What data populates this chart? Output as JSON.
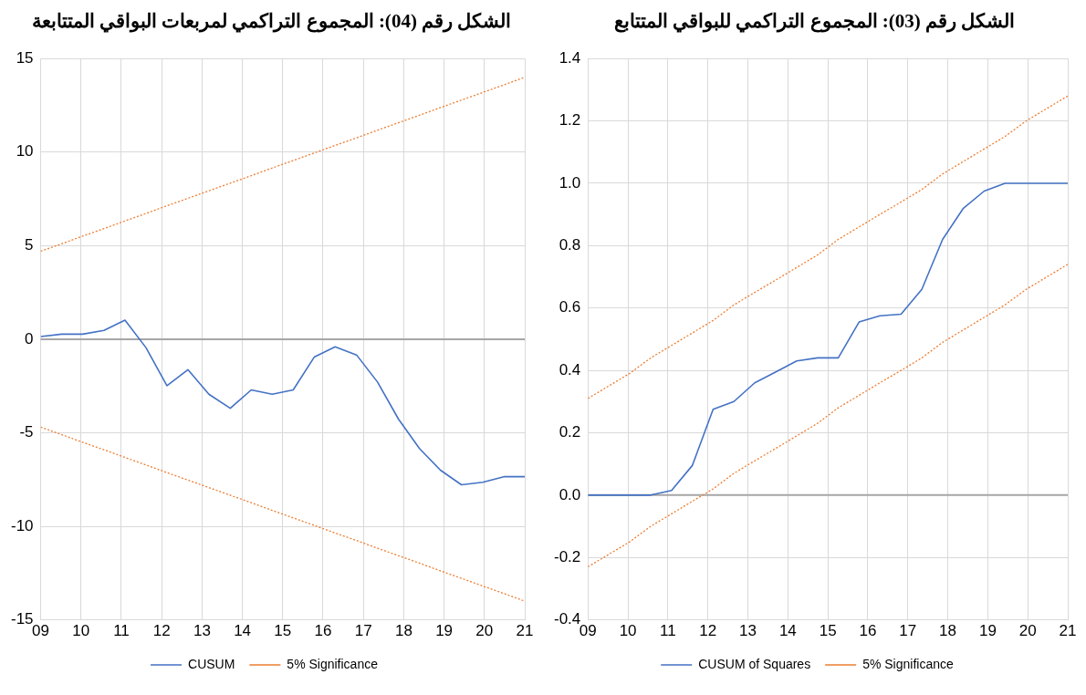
{
  "chart_data": [
    {
      "type": "line",
      "title": "الشكل رقم (04): المجموع التراكمي لمربعات البواقي المتتابعة",
      "x": [
        9.0,
        9.52,
        10.04,
        10.57,
        11.09,
        11.61,
        12.13,
        12.65,
        13.17,
        13.7,
        14.22,
        14.74,
        15.26,
        15.78,
        16.3,
        16.83,
        17.35,
        17.87,
        18.39,
        18.91,
        19.43,
        19.96,
        20.48,
        21.0
      ],
      "series": [
        {
          "name": "CUSUM",
          "color": "#4472c4",
          "line_style": "solid",
          "values": [
            0.14,
            0.27,
            0.27,
            0.47,
            1.02,
            -0.45,
            -2.49,
            -1.63,
            -2.94,
            -3.69,
            -2.71,
            -2.94,
            -2.71,
            -0.96,
            -0.41,
            -0.84,
            -2.29,
            -4.27,
            -5.84,
            -7.0,
            -7.78,
            -7.65,
            -7.35,
            -7.35
          ]
        },
        {
          "name": "5% Significance",
          "color": "#ed7d31",
          "line_style": "dotted",
          "values": [
            4.7,
            5.1,
            5.51,
            5.91,
            6.32,
            6.72,
            7.13,
            7.53,
            7.93,
            8.34,
            8.74,
            9.15,
            9.55,
            9.95,
            10.36,
            10.76,
            11.17,
            11.57,
            11.97,
            12.38,
            12.78,
            13.19,
            13.59,
            14.0
          ]
        },
        {
          "color": "#ed7d31",
          "line_style": "dotted",
          "values": [
            -4.7,
            -5.1,
            -5.51,
            -5.91,
            -6.32,
            -6.72,
            -7.13,
            -7.53,
            -7.93,
            -8.34,
            -8.74,
            -9.15,
            -9.55,
            -9.95,
            -10.36,
            -10.76,
            -11.17,
            -11.57,
            -11.97,
            -12.38,
            -12.78,
            -13.19,
            -13.59,
            -14.0
          ]
        }
      ],
      "xlim": [
        9,
        21
      ],
      "xticks": [
        {
          "value": 9,
          "label": "09"
        },
        10,
        11,
        12,
        13,
        14,
        15,
        16,
        17,
        18,
        19,
        20,
        21
      ],
      "ylim": [
        -15,
        15
      ],
      "yticks": [
        -15,
        -10,
        -5,
        0,
        5,
        10,
        15
      ],
      "ref_lines": [
        {
          "axis": "y",
          "value": 0,
          "color": "#a6a6a6"
        }
      ],
      "grid": true,
      "legend": "bottom",
      "marker": "none"
    },
    {
      "type": "line",
      "title": "الشكل رقم (03): المجموع التراكمي للبواقي المتتابع",
      "x": [
        9.0,
        9.52,
        10.04,
        10.57,
        11.09,
        11.61,
        12.13,
        12.65,
        13.17,
        13.7,
        14.22,
        14.74,
        15.26,
        15.78,
        16.3,
        16.83,
        17.35,
        17.87,
        18.39,
        18.91,
        19.43,
        19.96,
        20.48,
        21.0
      ],
      "series": [
        {
          "name": "CUSUM of Squares",
          "color": "#4472c4",
          "line_style": "solid",
          "values": [
            0,
            0,
            0,
            0,
            0.015,
            0.095,
            0.275,
            0.3,
            0.36,
            0.395,
            0.43,
            0.44,
            0.44,
            0.555,
            0.575,
            0.58,
            0.66,
            0.82,
            0.92,
            0.975,
            1,
            1,
            1,
            1
          ]
        },
        {
          "name": "5% Significance",
          "color": "#ed7d31",
          "line_style": "dotted",
          "values": [
            0.31,
            0.35,
            0.39,
            0.44,
            0.48,
            0.52,
            0.56,
            0.61,
            0.65,
            0.69,
            0.73,
            0.77,
            0.82,
            0.86,
            0.9,
            0.94,
            0.98,
            1.03,
            1.07,
            1.11,
            1.15,
            1.2,
            1.24,
            1.28
          ]
        },
        {
          "color": "#ed7d31",
          "line_style": "dotted",
          "values": [
            -0.23,
            -0.19,
            -0.15,
            -0.1,
            -0.06,
            -0.02,
            0.02,
            0.07,
            0.11,
            0.15,
            0.19,
            0.23,
            0.28,
            0.32,
            0.36,
            0.4,
            0.44,
            0.49,
            0.53,
            0.57,
            0.61,
            0.66,
            0.7,
            0.74
          ]
        }
      ],
      "xlim": [
        9,
        21
      ],
      "xticks": [
        {
          "value": 9,
          "label": "09"
        },
        10,
        11,
        12,
        13,
        14,
        15,
        16,
        17,
        18,
        19,
        20,
        21
      ],
      "ylim": [
        -0.4,
        1.4
      ],
      "yticks": [
        -0.4,
        -0.2,
        {
          "value": 0,
          "label": "0.0"
        },
        0.2,
        0.4,
        0.6,
        0.8,
        {
          "value": 1,
          "label": "1.0"
        },
        1.2,
        1.4
      ],
      "ref_lines": [
        {
          "axis": "y",
          "value": 0,
          "color": "#a6a6a6"
        }
      ],
      "grid": true,
      "legend": "bottom",
      "marker": "none"
    }
  ]
}
